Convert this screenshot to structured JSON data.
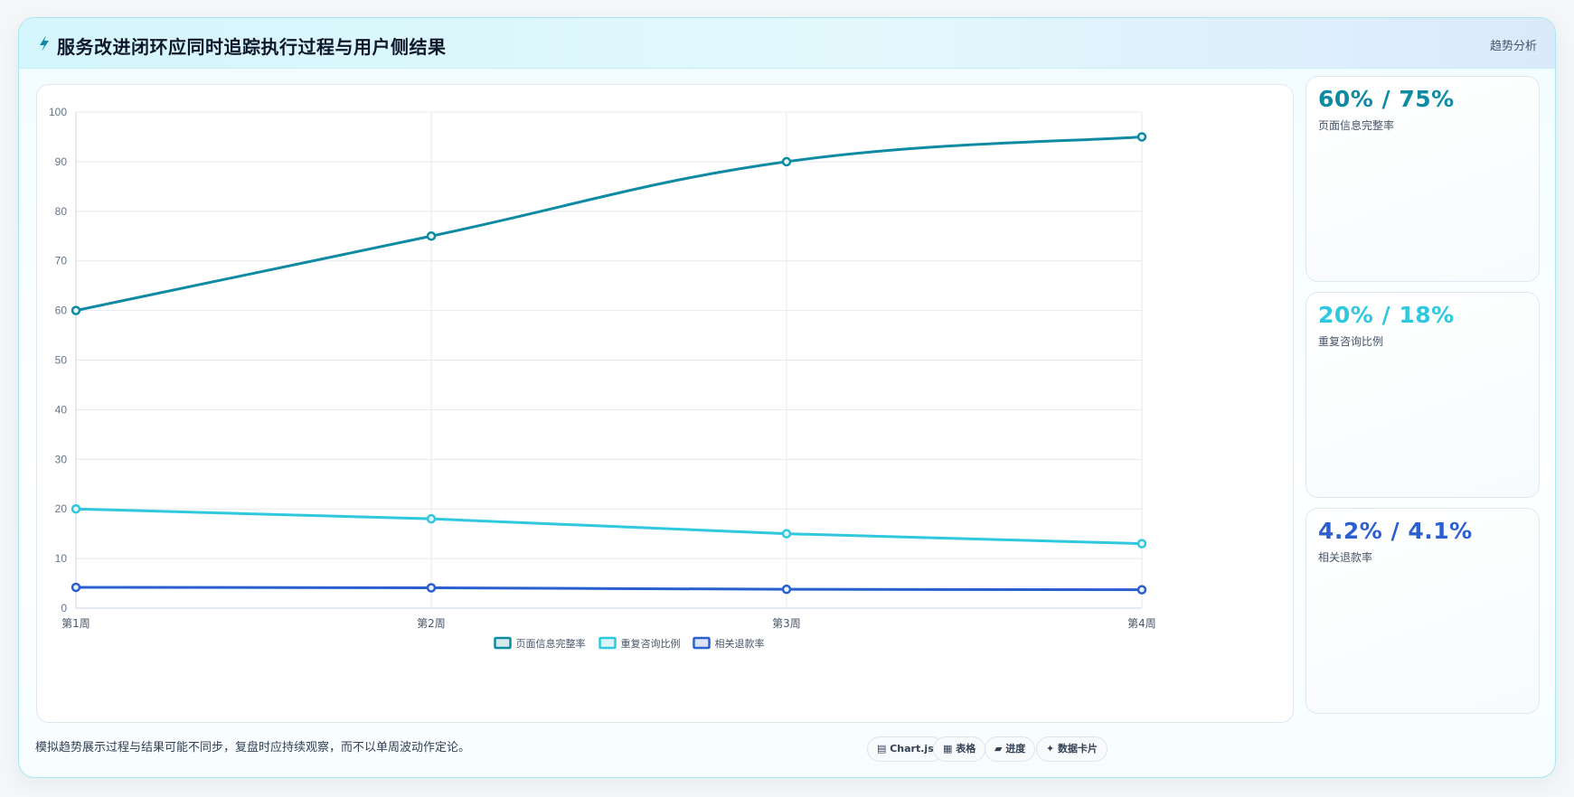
{
  "header": {
    "title_icon": "lightning-icon",
    "title": "服务改进闭环应同时追踪执行过程与用户侧结果",
    "link_label": "趋势分析"
  },
  "stats": [
    {
      "value": "60% / 75%",
      "label": "页面信息完整率",
      "color": "#0e8aa3"
    },
    {
      "value": "20% / 18%",
      "label": "重复咨询比例",
      "color": "#2fc8de"
    },
    {
      "value": "4.2% / 4.1%",
      "label": "相关退款率",
      "color": "#2b5fd0"
    }
  ],
  "footnote": "模拟趋势展示过程与结果可能不同步，复盘时应持续观察，而不以单周波动作定论。",
  "chips": [
    {
      "icon": "chart-icon",
      "label": "Chart.js"
    },
    {
      "icon": "table-icon",
      "label": "表格"
    },
    {
      "icon": "progress-icon",
      "label": "进度"
    },
    {
      "icon": "sparkle-icon",
      "label": "数据卡片"
    }
  ],
  "chart_data": {
    "type": "line",
    "categories": [
      "第1周",
      "第2周",
      "第3周",
      "第4周"
    ],
    "series": [
      {
        "name": "页面信息完整率",
        "values": [
          60,
          75,
          90,
          95
        ],
        "color": "#0e8aa3"
      },
      {
        "name": "重复咨询比例",
        "values": [
          20,
          18,
          15,
          13
        ],
        "color": "#2fc8de"
      },
      {
        "name": "相关退款率",
        "values": [
          4.2,
          4.1,
          3.8,
          3.7
        ],
        "color": "#2b5fd0"
      }
    ],
    "ylim": [
      0,
      100
    ],
    "yticks": [
      "0",
      "10",
      "20",
      "30",
      "40",
      "50",
      "60",
      "70",
      "80",
      "90",
      "100"
    ],
    "grid": true,
    "legend": "bottom"
  }
}
